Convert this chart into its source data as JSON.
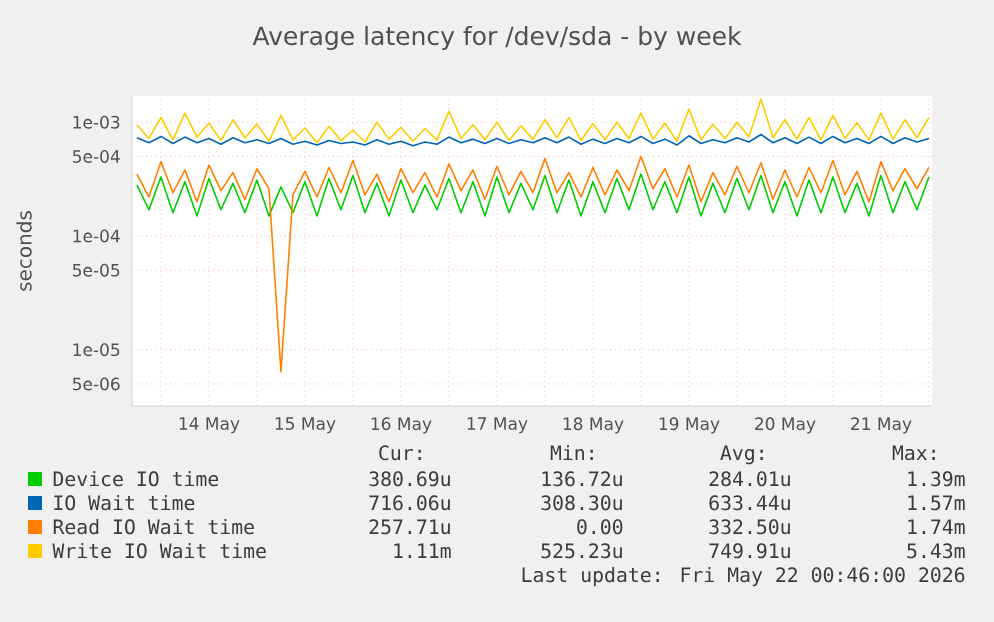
{
  "chart_data": {
    "type": "line",
    "title": "Average latency for /dev/sda - by week",
    "ylabel": "seconds",
    "log": "y",
    "grid": true,
    "legend": "bottom",
    "xlim": [
      "2026-05-13T16:46",
      "2026-05-22T00:46"
    ],
    "ylim": [
      3.2e-06,
      0.0017
    ],
    "xticks": [
      {
        "value": "2026-05-14T00:00",
        "label": null
      },
      {
        "value": "2026-05-14T12:00",
        "label": "14 May"
      },
      {
        "value": "2026-05-15T00:00",
        "label": null
      },
      {
        "value": "2026-05-15T12:00",
        "label": "15 May"
      },
      {
        "value": "2026-05-16T00:00",
        "label": null
      },
      {
        "value": "2026-05-16T12:00",
        "label": "16 May"
      },
      {
        "value": "2026-05-17T00:00",
        "label": null
      },
      {
        "value": "2026-05-17T12:00",
        "label": "17 May"
      },
      {
        "value": "2026-05-18T00:00",
        "label": null
      },
      {
        "value": "2026-05-18T12:00",
        "label": "18 May"
      },
      {
        "value": "2026-05-19T00:00",
        "label": null
      },
      {
        "value": "2026-05-19T12:00",
        "label": "19 May"
      },
      {
        "value": "2026-05-20T00:00",
        "label": null
      },
      {
        "value": "2026-05-20T12:00",
        "label": "20 May"
      },
      {
        "value": "2026-05-21T00:00",
        "label": null
      },
      {
        "value": "2026-05-21T12:00",
        "label": "21 May"
      },
      {
        "value": "2026-05-22T00:00",
        "label": null
      }
    ],
    "yticks": [
      {
        "value": 5e-06,
        "label": "5e-06"
      },
      {
        "value": 1e-05,
        "label": "1e-05"
      },
      {
        "value": 5e-05,
        "label": "5e-05"
      },
      {
        "value": 0.0001,
        "label": "1e-04"
      },
      {
        "value": 0.0005,
        "label": "5e-04"
      },
      {
        "value": 0.001,
        "label": "1e-03"
      }
    ],
    "x": [
      "2026-05-13T18:00",
      "2026-05-13T21:00",
      "2026-05-14T00:00",
      "2026-05-14T03:00",
      "2026-05-14T06:00",
      "2026-05-14T09:00",
      "2026-05-14T12:00",
      "2026-05-14T15:00",
      "2026-05-14T18:00",
      "2026-05-14T21:00",
      "2026-05-15T00:00",
      "2026-05-15T03:00",
      "2026-05-15T06:00",
      "2026-05-15T09:00",
      "2026-05-15T12:00",
      "2026-05-15T15:00",
      "2026-05-15T18:00",
      "2026-05-15T21:00",
      "2026-05-16T00:00",
      "2026-05-16T03:00",
      "2026-05-16T06:00",
      "2026-05-16T09:00",
      "2026-05-16T12:00",
      "2026-05-16T15:00",
      "2026-05-16T18:00",
      "2026-05-16T21:00",
      "2026-05-17T00:00",
      "2026-05-17T03:00",
      "2026-05-17T06:00",
      "2026-05-17T09:00",
      "2026-05-17T12:00",
      "2026-05-17T15:00",
      "2026-05-17T18:00",
      "2026-05-17T21:00",
      "2026-05-18T00:00",
      "2026-05-18T03:00",
      "2026-05-18T06:00",
      "2026-05-18T09:00",
      "2026-05-18T12:00",
      "2026-05-18T15:00",
      "2026-05-18T18:00",
      "2026-05-18T21:00",
      "2026-05-19T00:00",
      "2026-05-19T03:00",
      "2026-05-19T06:00",
      "2026-05-19T09:00",
      "2026-05-19T12:00",
      "2026-05-19T15:00",
      "2026-05-19T18:00",
      "2026-05-19T21:00",
      "2026-05-20T00:00",
      "2026-05-20T03:00",
      "2026-05-20T06:00",
      "2026-05-20T09:00",
      "2026-05-20T12:00",
      "2026-05-20T15:00",
      "2026-05-20T18:00",
      "2026-05-20T21:00",
      "2026-05-21T00:00",
      "2026-05-21T03:00",
      "2026-05-21T06:00",
      "2026-05-21T09:00",
      "2026-05-21T12:00",
      "2026-05-21T15:00",
      "2026-05-21T18:00",
      "2026-05-21T21:00",
      "2026-05-22T00:00"
    ],
    "series": [
      {
        "name": "Device IO time",
        "color": "#00cc00",
        "values": [
          0.00028,
          0.00017,
          0.00033,
          0.00016,
          0.0003,
          0.00015,
          0.00032,
          0.00017,
          0.00029,
          0.00016,
          0.00031,
          0.00015,
          0.00027,
          0.00016,
          0.0003,
          0.00015,
          0.00032,
          0.00017,
          0.00034,
          0.00016,
          0.00029,
          0.00015,
          0.00031,
          0.00016,
          0.00028,
          0.00017,
          0.00032,
          0.00016,
          0.0003,
          0.00015,
          0.00033,
          0.00016,
          0.00029,
          0.00017,
          0.00034,
          0.00016,
          0.00031,
          0.00015,
          0.0003,
          0.00016,
          0.00032,
          0.00017,
          0.00035,
          0.00017,
          0.0003,
          0.00016,
          0.00033,
          0.00015,
          0.00029,
          0.00016,
          0.00032,
          0.00017,
          0.00034,
          0.00016,
          0.0003,
          0.00015,
          0.00031,
          0.00016,
          0.00033,
          0.00016,
          0.00029,
          0.00015,
          0.00034,
          0.00016,
          0.0003,
          0.00017,
          0.00033
        ]
      },
      {
        "name": "IO Wait time",
        "color": "#0066b3",
        "values": [
          0.00073,
          0.00066,
          0.00075,
          0.00065,
          0.00074,
          0.00066,
          0.00072,
          0.00064,
          0.00073,
          0.00066,
          0.0007,
          0.00065,
          0.00072,
          0.00064,
          0.00068,
          0.00063,
          0.00069,
          0.00065,
          0.00067,
          0.00063,
          0.0007,
          0.00064,
          0.00068,
          0.00062,
          0.00067,
          0.00064,
          0.00074,
          0.00066,
          0.00071,
          0.00065,
          0.00072,
          0.00065,
          0.0007,
          0.00066,
          0.00073,
          0.00066,
          0.00074,
          0.00064,
          0.00071,
          0.00065,
          0.00072,
          0.00066,
          0.00075,
          0.00065,
          0.00071,
          0.00063,
          0.00076,
          0.00065,
          0.0007,
          0.00066,
          0.00073,
          0.00067,
          0.00078,
          0.00066,
          0.00073,
          0.00065,
          0.00074,
          0.00065,
          0.00075,
          0.00066,
          0.00072,
          0.00065,
          0.00075,
          0.00065,
          0.00073,
          0.00067,
          0.00072
        ]
      },
      {
        "name": "Read IO Wait time",
        "color": "#ff8000",
        "values": [
          0.00035,
          0.00022,
          0.00045,
          0.00024,
          0.00038,
          0.0002,
          0.00042,
          0.00025,
          0.00036,
          0.00021,
          0.00039,
          0.00026,
          6.4e-06,
          0.00023,
          0.00037,
          0.00022,
          0.0004,
          0.00024,
          0.00046,
          0.00023,
          0.00035,
          0.0002,
          0.00039,
          0.00024,
          0.00036,
          0.00022,
          0.00043,
          0.00025,
          0.00038,
          0.00021,
          0.00041,
          0.00023,
          0.00037,
          0.00024,
          0.00048,
          0.00024,
          0.00036,
          0.00022,
          0.0004,
          0.00023,
          0.00038,
          0.00025,
          0.0005,
          0.00026,
          0.00039,
          0.00022,
          0.00042,
          0.0002,
          0.00036,
          0.00023,
          0.00041,
          0.00024,
          0.00044,
          0.00021,
          0.00038,
          0.00022,
          0.0004,
          0.00024,
          0.00046,
          0.00023,
          0.00037,
          0.0002,
          0.00045,
          0.00025,
          0.00039,
          0.00026,
          0.0004
        ]
      },
      {
        "name": "Write IO Wait time",
        "color": "#ffcc00",
        "values": [
          0.00095,
          0.00072,
          0.0011,
          0.0007,
          0.0012,
          0.00074,
          0.00098,
          0.00069,
          0.00105,
          0.00073,
          0.00096,
          0.00068,
          0.00115,
          0.0007,
          0.00089,
          0.00066,
          0.00092,
          0.00069,
          0.00085,
          0.00067,
          0.001,
          0.00071,
          0.0009,
          0.00068,
          0.00088,
          0.0007,
          0.00125,
          0.00072,
          0.00095,
          0.0007,
          0.001,
          0.00069,
          0.00093,
          0.00071,
          0.00105,
          0.00073,
          0.0011,
          0.00069,
          0.00097,
          0.0007,
          0.001,
          0.00072,
          0.0012,
          0.00071,
          0.00098,
          0.00068,
          0.0013,
          0.0007,
          0.00096,
          0.00072,
          0.001,
          0.00074,
          0.0016,
          0.00073,
          0.00105,
          0.00071,
          0.0011,
          0.0007,
          0.00115,
          0.00072,
          0.00099,
          0.0007,
          0.0012,
          0.00071,
          0.00105,
          0.00073,
          0.0011
        ]
      }
    ],
    "annotations": [
      "Cur:",
      "Min:",
      "Avg:",
      "Max:",
      "380.69u",
      "136.72u",
      "284.01u",
      "1.39m",
      "716.06u",
      "308.30u",
      "633.44u",
      "1.57m",
      "257.71u",
      "0.00",
      "332.50u",
      "1.74m",
      "1.11m",
      "525.23u",
      "749.91u",
      "5.43m",
      "Last update: Fri May 22 00:46:00 2026"
    ]
  }
}
